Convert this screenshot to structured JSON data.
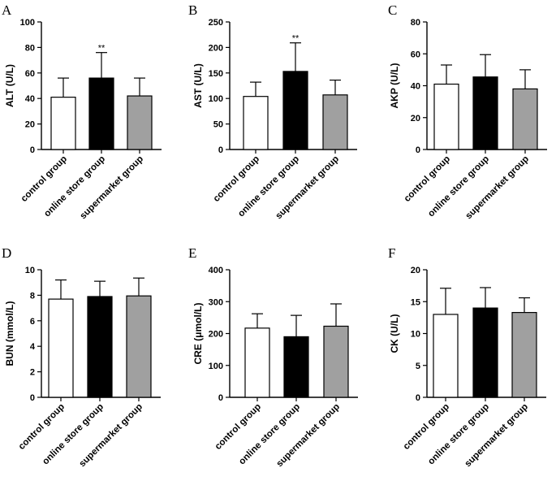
{
  "figure": {
    "colors": {
      "control_group": "#ffffff",
      "online_store_group": "#000000",
      "supermarket_group": "#a0a0a0",
      "stroke": "#000000"
    }
  },
  "chart_data": [
    {
      "panel": "A",
      "type": "bar",
      "ylabel": "ALT (U/L)",
      "ylim": [
        0,
        100
      ],
      "yticks": [
        0,
        20,
        40,
        60,
        80,
        100
      ],
      "categories": [
        "control group",
        "online store group",
        "supermarket group"
      ],
      "values": [
        41,
        56,
        42
      ],
      "errors": [
        15,
        20,
        14
      ],
      "annotations": [
        "",
        "**",
        ""
      ]
    },
    {
      "panel": "B",
      "type": "bar",
      "ylabel": "AST (U/L)",
      "ylim": [
        0,
        250
      ],
      "yticks": [
        0,
        50,
        100,
        150,
        200,
        250
      ],
      "categories": [
        "control group",
        "online store group",
        "supermarket group"
      ],
      "values": [
        104,
        153,
        107
      ],
      "errors": [
        28,
        56,
        29
      ],
      "annotations": [
        "",
        "**",
        ""
      ]
    },
    {
      "panel": "C",
      "type": "bar",
      "ylabel": "AKP (U/L)",
      "ylim": [
        0,
        80
      ],
      "yticks": [
        0,
        20,
        40,
        60,
        80
      ],
      "categories": [
        "control group",
        "online store group",
        "supermarket group"
      ],
      "values": [
        41,
        45.5,
        38
      ],
      "errors": [
        12,
        14,
        12
      ],
      "annotations": [
        "",
        "",
        ""
      ]
    },
    {
      "panel": "D",
      "type": "bar",
      "ylabel": "BUN (mmol/L)",
      "ylim": [
        0,
        10
      ],
      "yticks": [
        0,
        2,
        4,
        6,
        8,
        10
      ],
      "categories": [
        "control group",
        "online store group",
        "supermarket group"
      ],
      "values": [
        7.7,
        7.9,
        7.95
      ],
      "errors": [
        1.5,
        1.2,
        1.4
      ],
      "annotations": [
        "",
        "",
        ""
      ]
    },
    {
      "panel": "E",
      "type": "bar",
      "ylabel": "CRE (μmol/L)",
      "ylim": [
        0,
        400
      ],
      "yticks": [
        0,
        100,
        200,
        300,
        400
      ],
      "categories": [
        "control group",
        "online store group",
        "supermarket group"
      ],
      "values": [
        217,
        190,
        223
      ],
      "errors": [
        45,
        67,
        70
      ],
      "annotations": [
        "",
        "",
        ""
      ]
    },
    {
      "panel": "F",
      "type": "bar",
      "ylabel": "CK (U/L)",
      "ylim": [
        0,
        20
      ],
      "yticks": [
        0,
        5,
        10,
        15,
        20
      ],
      "categories": [
        "control group",
        "online store group",
        "supermarket group"
      ],
      "values": [
        13,
        14,
        13.3
      ],
      "errors": [
        4.1,
        3.2,
        2.3
      ],
      "annotations": [
        "",
        "",
        ""
      ]
    }
  ]
}
